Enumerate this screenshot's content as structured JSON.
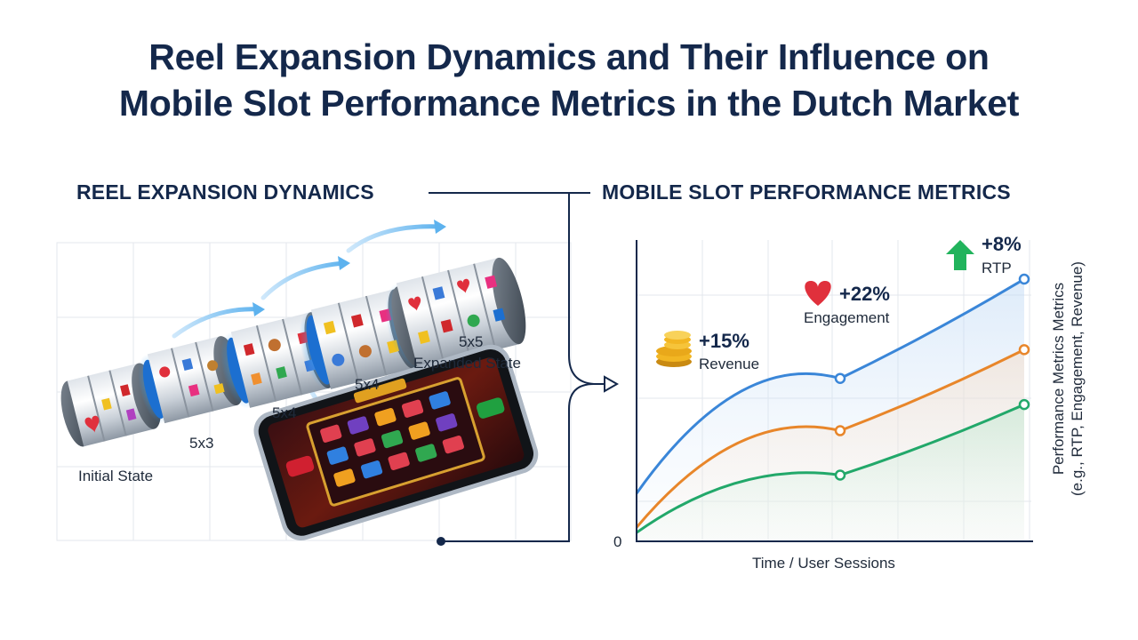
{
  "title": {
    "line1": "Reel Expansion Dynamics and Their Influence on",
    "line2": "Mobile Slot Performance Metrics in the Dutch Market"
  },
  "left_section": {
    "heading": "REEL EXPANSION DYNAMICS",
    "stages": [
      {
        "label": "Initial State"
      },
      {
        "label": "5x3"
      },
      {
        "label": "5x4"
      },
      {
        "label": "5x4"
      },
      {
        "label": "5x5",
        "sublabel": "Expanded State"
      }
    ]
  },
  "right_section": {
    "heading": "MOBILE SLOT PERFORMANCE METRICS",
    "metrics": [
      {
        "value": "+15%",
        "name": "Revenue",
        "icon": "coins-icon"
      },
      {
        "value": "+22%",
        "name": "Engagement",
        "icon": "heart-icon"
      },
      {
        "value": "+8%",
        "name": "RTP",
        "icon": "up-arrow-icon"
      }
    ]
  },
  "chart_data": {
    "type": "line",
    "xlabel": "Time / User Sessions",
    "ylabel_line1": "Performance Metrics Metrics",
    "ylabel_line2": "(e.g., RTP, Engagement, Revenue)",
    "y_origin_label": "0",
    "series": [
      {
        "name": "RTP",
        "color": "#3a86d8",
        "values": [
          0.18,
          0.62,
          1.0
        ]
      },
      {
        "name": "Engagement",
        "color": "#e8862a",
        "values": [
          0.05,
          0.42,
          0.73
        ]
      },
      {
        "name": "Revenue",
        "color": "#22a86a",
        "values": [
          0.03,
          0.25,
          0.52
        ]
      }
    ]
  },
  "colors": {
    "title": "#14284b",
    "rtp": "#3a86d8",
    "engagement": "#e8862a",
    "revenue": "#22a86a",
    "heart": "#e0303c",
    "arrow_green": "#21b35c",
    "glow": "#7cc3f0"
  }
}
